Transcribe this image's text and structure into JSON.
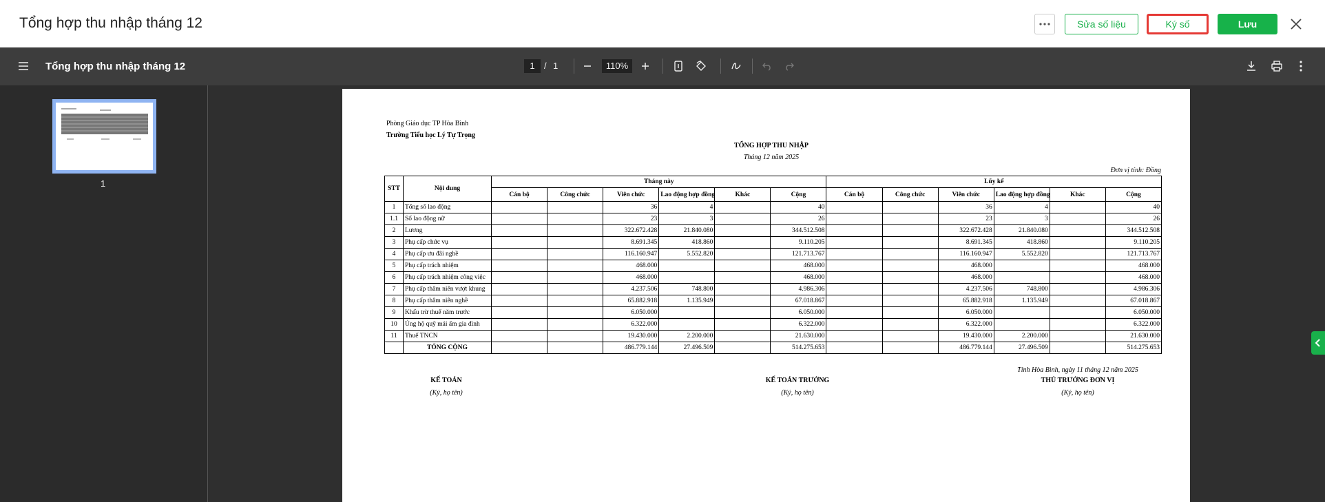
{
  "header": {
    "title": "Tổng hợp thu nhập tháng 12",
    "buttons": {
      "edit": "Sửa số liệu",
      "sign": "Ký số",
      "save": "Lưu"
    }
  },
  "toolbar": {
    "title": "Tổng hợp thu nhập tháng 12",
    "page": "1",
    "page_separator": "/",
    "page_count": "1",
    "zoom": "110%"
  },
  "sidebar": {
    "thumbnail_label": "1"
  },
  "document": {
    "department": "Phòng Giáo dục TP Hòa Bình",
    "school": "Trường Tiểu học Lý Tự Trọng",
    "title": "TỔNG HỢP THU NHẬP",
    "period": "Tháng 12 năm 2025",
    "unit": "Đơn vị tính: Đồng",
    "table": {
      "stt_header": "STT",
      "label_header": "Nội dung",
      "group_current": "Tháng này",
      "group_cumulative": "Lũy kế",
      "columns": [
        "Cán bộ",
        "Công chức",
        "Viên chức",
        "Lao động hợp đồng",
        "Khác",
        "Cộng"
      ],
      "rows": [
        {
          "stt": "1",
          "label": "Tổng số lao động",
          "current": [
            null,
            null,
            "36",
            "4",
            null,
            "40"
          ],
          "cumulative": [
            null,
            null,
            "36",
            "4",
            null,
            "40"
          ]
        },
        {
          "stt": "1.1",
          "label": "Số lao động nữ",
          "current": [
            null,
            null,
            "23",
            "3",
            null,
            "26"
          ],
          "cumulative": [
            null,
            null,
            "23",
            "3",
            null,
            "26"
          ]
        },
        {
          "stt": "2",
          "label": "Lương",
          "current": [
            null,
            null,
            "322.672.428",
            "21.840.080",
            null,
            "344.512.508"
          ],
          "cumulative": [
            null,
            null,
            "322.672.428",
            "21.840.080",
            null,
            "344.512.508"
          ]
        },
        {
          "stt": "3",
          "label": "Phụ cấp chức vụ",
          "current": [
            null,
            null,
            "8.691.345",
            "418.860",
            null,
            "9.110.205"
          ],
          "cumulative": [
            null,
            null,
            "8.691.345",
            "418.860",
            null,
            "9.110.205"
          ]
        },
        {
          "stt": "4",
          "label": "Phụ cấp ưu đãi nghề",
          "current": [
            null,
            null,
            "116.160.947",
            "5.552.820",
            null,
            "121.713.767"
          ],
          "cumulative": [
            null,
            null,
            "116.160.947",
            "5.552.820",
            null,
            "121.713.767"
          ]
        },
        {
          "stt": "5",
          "label": "Phụ cấp trách nhiệm",
          "current": [
            null,
            null,
            "468.000",
            null,
            null,
            "468.000"
          ],
          "cumulative": [
            null,
            null,
            "468.000",
            null,
            null,
            "468.000"
          ]
        },
        {
          "stt": "6",
          "label": "Phụ cấp trách nhiệm công việc",
          "current": [
            null,
            null,
            "468.000",
            null,
            null,
            "468.000"
          ],
          "cumulative": [
            null,
            null,
            "468.000",
            null,
            null,
            "468.000"
          ]
        },
        {
          "stt": "7",
          "label": "Phụ cấp thâm niên vượt khung",
          "current": [
            null,
            null,
            "4.237.506",
            "748.800",
            null,
            "4.986.306"
          ],
          "cumulative": [
            null,
            null,
            "4.237.506",
            "748.800",
            null,
            "4.986.306"
          ]
        },
        {
          "stt": "8",
          "label": "Phụ cấp thâm niên nghề",
          "current": [
            null,
            null,
            "65.882.918",
            "1.135.949",
            null,
            "67.018.867"
          ],
          "cumulative": [
            null,
            null,
            "65.882.918",
            "1.135.949",
            null,
            "67.018.867"
          ]
        },
        {
          "stt": "9",
          "label": "Khấu trừ thuế năm trước",
          "current": [
            null,
            null,
            "6.050.000",
            null,
            null,
            "6.050.000"
          ],
          "cumulative": [
            null,
            null,
            "6.050.000",
            null,
            null,
            "6.050.000"
          ]
        },
        {
          "stt": "10",
          "label": "Ủng hộ quỹ mái ấm gia đình",
          "current": [
            null,
            null,
            "6.322.000",
            null,
            null,
            "6.322.000"
          ],
          "cumulative": [
            null,
            null,
            "6.322.000",
            null,
            null,
            "6.322.000"
          ]
        },
        {
          "stt": "11",
          "label": "Thuế TNCN",
          "current": [
            null,
            null,
            "19.430.000",
            "2.200.000",
            null,
            "21.630.000"
          ],
          "cumulative": [
            null,
            null,
            "19.430.000",
            "2.200.000",
            null,
            "21.630.000"
          ]
        },
        {
          "stt": null,
          "label": "TỔNG CỘNG",
          "current": [
            null,
            null,
            "486.779.144",
            "27.496.509",
            null,
            "514.275.653"
          ],
          "cumulative": [
            null,
            null,
            "486.779.144",
            "27.496.509",
            null,
            "514.275.653"
          ]
        }
      ]
    },
    "place_date": "Tỉnh Hòa Bình, ngày 11 tháng 12 năm 2025",
    "signatures": [
      {
        "role": "KẾ TOÁN",
        "note": "(Ký, họ tên)"
      },
      {
        "role": "KẾ TOÁN TRƯỞNG",
        "note": "(Ký, họ tên)"
      },
      {
        "role": "THỦ TRƯỞNG ĐƠN VỊ",
        "note": "(Ký, họ tên)"
      }
    ]
  }
}
